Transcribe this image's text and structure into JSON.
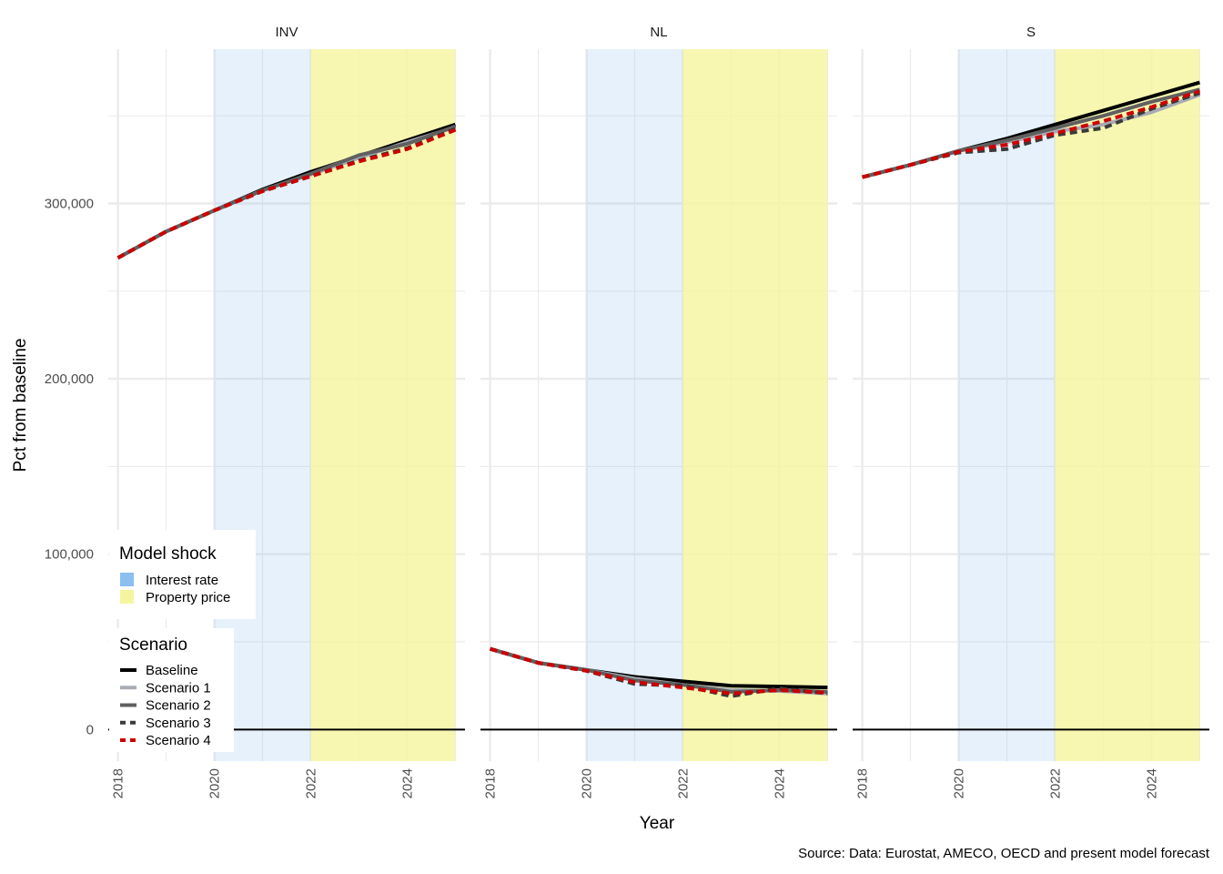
{
  "chart_data": {
    "type": "line",
    "xlabel": "Year",
    "ylabel": "Pct from baseline",
    "caption": "Source: Data: Eurostat, AMECO, OECD and present model forecast",
    "xlim": [
      2017.8,
      2025.2
    ],
    "ylim": [
      -18000,
      388000
    ],
    "x_ticks": [
      2018,
      2020,
      2022,
      2024
    ],
    "x_tick_labels": [
      "2018",
      "2020",
      "2022",
      "2024"
    ],
    "y_ticks": [
      0,
      100000,
      200000,
      300000
    ],
    "y_tick_labels": [
      "0",
      "100,000",
      "200,000",
      "300,000"
    ],
    "y_minor_ticks": [
      50000,
      150000,
      250000,
      350000
    ],
    "grid": true,
    "reference_line": 0,
    "shock_periods": [
      {
        "label": "Interest rate",
        "start": 2020,
        "end": 2022,
        "color": "#8bbff0",
        "opacity": 0.22
      },
      {
        "label": "Property price",
        "start": 2022,
        "end": 2025,
        "color": "#f5f5a0",
        "opacity": 0.82
      }
    ],
    "series_styles": [
      {
        "name": "Baseline",
        "color": "#000000",
        "dash": ""
      },
      {
        "name": "Scenario 1",
        "color": "#a8acb4",
        "dash": ""
      },
      {
        "name": "Scenario 2",
        "color": "#606060",
        "dash": ""
      },
      {
        "name": "Scenario 3",
        "color": "#3a3a3a",
        "dash": "8,5"
      },
      {
        "name": "Scenario 4",
        "color": "#cc0000",
        "dash": "8,5"
      }
    ],
    "panels": [
      {
        "title": "INV",
        "x": [
          2018,
          2019,
          2020,
          2021,
          2022,
          2023,
          2024,
          2025
        ],
        "series": [
          {
            "name": "Baseline",
            "values": [
              269000,
              284000,
              296000,
              308000,
              318000,
              327000,
              336000,
              345000
            ]
          },
          {
            "name": "Scenario 1",
            "values": [
              269000,
              284000,
              296000,
              307500,
              316500,
              326000,
              335000,
              343500
            ]
          },
          {
            "name": "Scenario 2",
            "values": [
              269000,
              284000,
              296000,
              307500,
              317000,
              327500,
              334000,
              344000
            ]
          },
          {
            "name": "Scenario 3",
            "values": [
              269000,
              284000,
              296000,
              307000,
              315500,
              324500,
              331500,
              342500
            ]
          },
          {
            "name": "Scenario 4",
            "values": [
              269000,
              284000,
              296000,
              307000,
              315500,
              324000,
              331000,
              342000
            ]
          }
        ]
      },
      {
        "title": "NL",
        "x": [
          2018,
          2019,
          2020,
          2021,
          2022,
          2023,
          2024,
          2025
        ],
        "series": [
          {
            "name": "Baseline",
            "values": [
              46000,
              38000,
              34000,
              30000,
              27500,
              25000,
              24500,
              24000
            ]
          },
          {
            "name": "Scenario 1",
            "values": [
              46000,
              38000,
              34000,
              29000,
              25500,
              22500,
              22000,
              20500
            ]
          },
          {
            "name": "Scenario 2",
            "values": [
              46000,
              38000,
              34000,
              28000,
              25500,
              21500,
              22500,
              21500
            ]
          },
          {
            "name": "Scenario 3",
            "values": [
              46000,
              38000,
              33500,
              26000,
              25000,
              19000,
              23500,
              20500
            ]
          },
          {
            "name": "Scenario 4",
            "values": [
              46000,
              38000,
              33500,
              27000,
              24000,
              20500,
              22500,
              21000
            ]
          }
        ]
      },
      {
        "title": "S",
        "x": [
          2018,
          2019,
          2020,
          2021,
          2022,
          2023,
          2024,
          2025
        ],
        "series": [
          {
            "name": "Baseline",
            "values": [
              315000,
              322000,
              330000,
              337000,
              345000,
              353000,
              361000,
              369000
            ]
          },
          {
            "name": "Scenario 1",
            "values": [
              315000,
              322000,
              330000,
              335000,
              341000,
              345000,
              352000,
              362000
            ]
          },
          {
            "name": "Scenario 2",
            "values": [
              315000,
              322000,
              330000,
              336000,
              343000,
              350000,
              358000,
              365000
            ]
          },
          {
            "name": "Scenario 3",
            "values": [
              315000,
              322000,
              329000,
              331000,
              339000,
              343000,
              354000,
              363000
            ]
          },
          {
            "name": "Scenario 4",
            "values": [
              315000,
              322000,
              329500,
              333500,
              340000,
              347000,
              355000,
              364000
            ]
          }
        ]
      }
    ],
    "legend": {
      "placement": "bottom-left",
      "shock_title": "Model shock",
      "shock_items": [
        "Interest rate",
        "Property price"
      ],
      "scenario_title": "Scenario",
      "scenario_items": [
        "Baseline",
        "Scenario 1",
        "Scenario 2",
        "Scenario 3",
        "Scenario 4"
      ]
    }
  }
}
